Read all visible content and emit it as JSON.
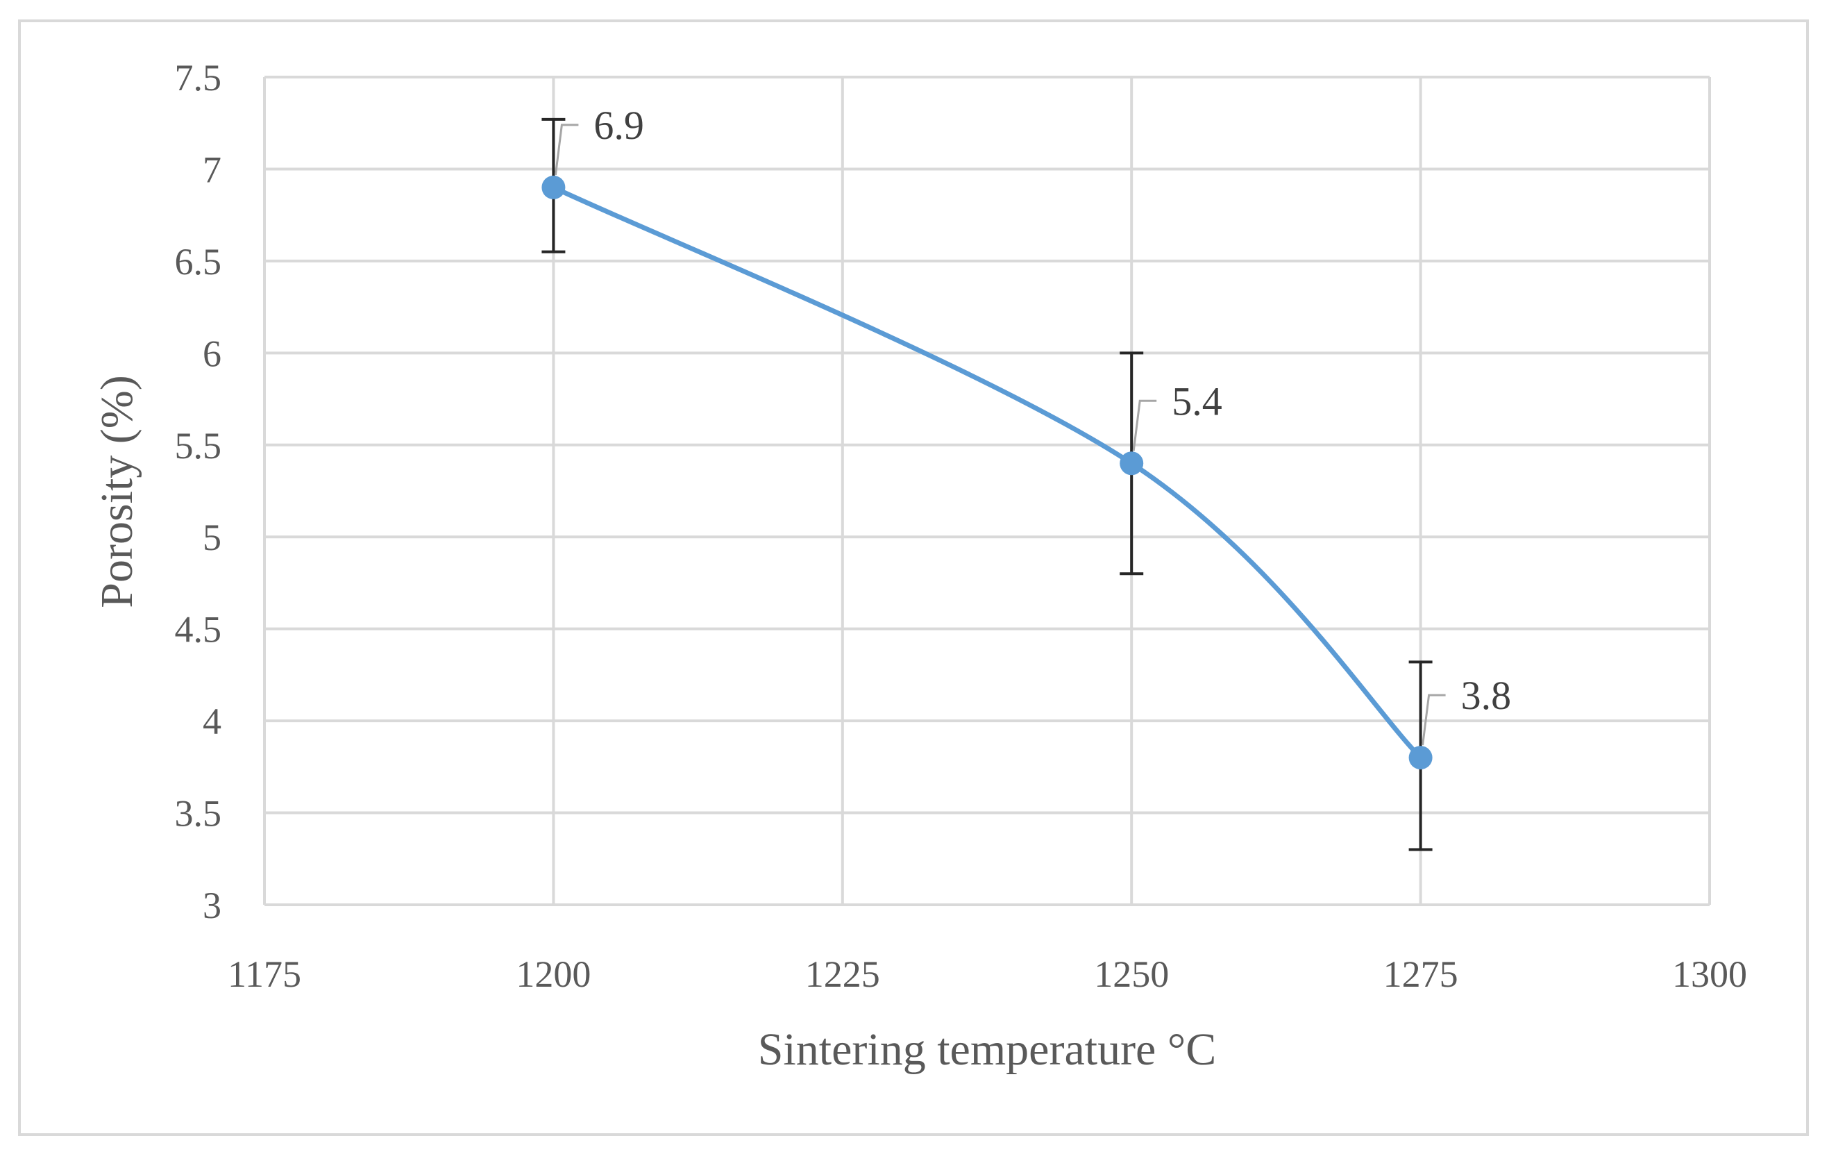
{
  "chart_data": {
    "type": "line",
    "title": "",
    "xlabel": "Sintering temperature °C",
    "ylabel": "Porosity (%)",
    "xlim": [
      1175,
      1300
    ],
    "ylim": [
      3,
      7.5
    ],
    "x_ticks": [
      "1175",
      "1200",
      "1225",
      "1250",
      "1275",
      "1300"
    ],
    "y_ticks": [
      "3",
      "3.5",
      "4",
      "4.5",
      "5",
      "5.5",
      "6",
      "6.5",
      "7",
      "7.5"
    ],
    "grid": true,
    "smooth": true,
    "series": [
      {
        "name": "Porosity",
        "color": "#5b9bd5",
        "x": [
          1200,
          1250,
          1275
        ],
        "values": [
          6.9,
          5.4,
          3.8
        ],
        "labels": [
          "6.9",
          "5.4",
          "3.8"
        ],
        "error_low": [
          6.55,
          4.8,
          3.3
        ],
        "error_high": [
          7.27,
          6.0,
          4.32
        ]
      }
    ]
  }
}
